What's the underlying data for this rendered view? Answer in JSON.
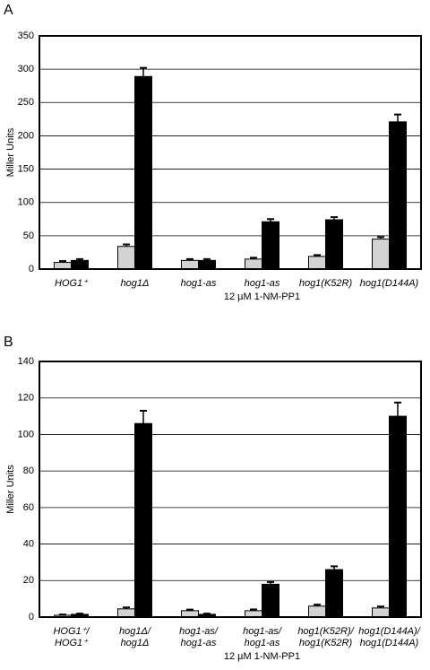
{
  "chart_data": [
    {
      "type": "bar",
      "panel": "A",
      "ylabel": "Miller Units",
      "categories": [
        [
          "HOG1⁺"
        ],
        [
          "hog1Δ"
        ],
        [
          "hog1-as"
        ],
        [
          "hog1-as"
        ],
        [
          "hog1(K52R)"
        ],
        [
          "hog1(D144A)"
        ]
      ],
      "annotation": "12 µM 1-NM-PP1",
      "series": [
        {
          "color": "#d3d3d3",
          "values": [
            10,
            34,
            13,
            15,
            19,
            45
          ],
          "errors": [
            2,
            3,
            2,
            2,
            2,
            3
          ]
        },
        {
          "color": "#000000",
          "values": [
            13,
            289,
            13,
            71,
            74,
            221
          ],
          "errors": [
            2,
            13,
            2,
            4,
            4,
            11
          ]
        }
      ],
      "ylim": [
        0,
        350
      ],
      "yticks": [
        0,
        50,
        100,
        150,
        200,
        250,
        300,
        350
      ],
      "grid": true
    },
    {
      "type": "bar",
      "panel": "B",
      "ylabel": "Miller Units",
      "categories": [
        [
          "HOG1⁺/",
          "HOG1⁺"
        ],
        [
          "hog1Δ/",
          "hog1Δ"
        ],
        [
          "hog1-as/",
          "hog1-as"
        ],
        [
          "hog1-as/",
          "hog1-as"
        ],
        [
          "hog1(K52R)/",
          "hog1(K52R)"
        ],
        [
          "hog1(D144A)/",
          "hog1(D144A)"
        ]
      ],
      "annotation": "12 µM 1-NM-PP1",
      "series": [
        {
          "color": "#d3d3d3",
          "values": [
            1,
            4.5,
            3.5,
            3.5,
            6,
            5
          ],
          "errors": [
            0.4,
            0.8,
            0.6,
            0.7,
            0.8,
            0.8
          ]
        },
        {
          "color": "#000000",
          "values": [
            1.5,
            106,
            1.5,
            18,
            26,
            110
          ],
          "errors": [
            0.4,
            7,
            0.4,
            1.2,
            1.8,
            7.5
          ]
        }
      ],
      "ylim": [
        0,
        140
      ],
      "yticks": [
        0,
        20,
        40,
        60,
        80,
        100,
        120,
        140
      ],
      "grid": true
    }
  ]
}
